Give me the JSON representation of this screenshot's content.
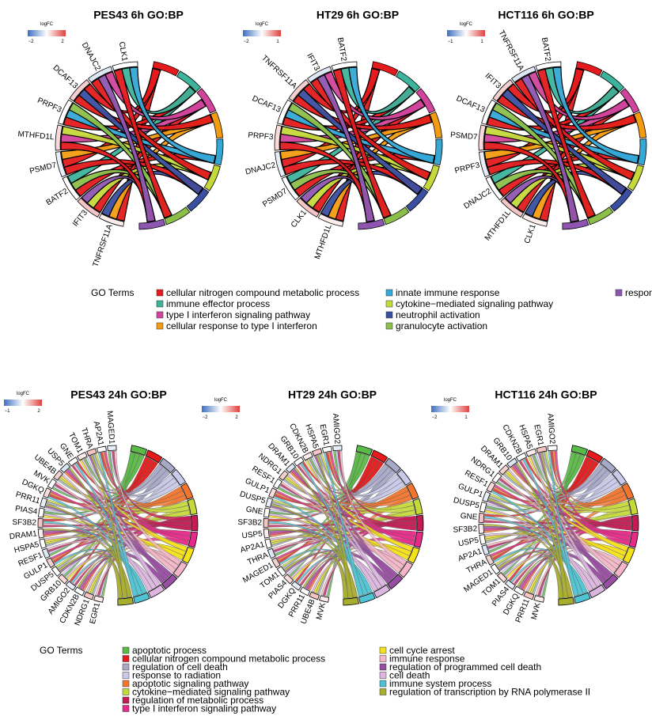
{
  "legend_top": {
    "heading": "GO Terms",
    "items": [
      {
        "label": "cellular nitrogen compound metabolic process",
        "color": "#e41a1c"
      },
      {
        "label": "immune effector process",
        "color": "#3cb39b"
      },
      {
        "label": "type I interferon signaling pathway",
        "color": "#d1449b"
      },
      {
        "label": "cellular response to type I interferon",
        "color": "#f39c12"
      },
      {
        "label": "innate immune response",
        "color": "#35a8d6"
      },
      {
        "label": "cytokine−mediated signaling pathway",
        "color": "#c5d93b"
      },
      {
        "label": "neutrophil activation",
        "color": "#3b4fa0"
      },
      {
        "label": "granulocyte activation",
        "color": "#8bbf4a"
      },
      {
        "label": "response to type I interferon",
        "color": "#8e56b0"
      }
    ]
  },
  "legend_bottom": {
    "heading": "GO Terms",
    "items": [
      {
        "label": "apoptotic process",
        "color": "#5bb947"
      },
      {
        "label": "cellular nitrogen compound metabolic process",
        "color": "#e41a1c"
      },
      {
        "label": "regulation of cell death",
        "color": "#a8a8c8"
      },
      {
        "label": "response to radiation",
        "color": "#c9c9e9"
      },
      {
        "label": "apoptotic signaling pathway",
        "color": "#f2762e"
      },
      {
        "label": "cytokine−mediated signaling pathway",
        "color": "#c5d93b"
      },
      {
        "label": "regulation of metabolic process",
        "color": "#c51b55"
      },
      {
        "label": "type I interferon signaling pathway",
        "color": "#e7298a"
      },
      {
        "label": "cell cycle arrest",
        "color": "#f5e11c"
      },
      {
        "label": "immune response",
        "color": "#f4b6c8"
      },
      {
        "label": "regulation of programmed cell death",
        "color": "#984ea3"
      },
      {
        "label": "cell death",
        "color": "#dcb6e0"
      },
      {
        "label": "immune system process",
        "color": "#4fc3d3"
      },
      {
        "label": "regulation of transcription by RNA polymerase II",
        "color": "#a7ad2c"
      }
    ]
  },
  "chart_data": [
    {
      "type": "chord",
      "title": "PES43 6h GO:BP",
      "colorbar": {
        "label": "logFC",
        "min": "−2",
        "max": "2"
      },
      "genes": [
        "TNFRSF11A",
        "IFIT3",
        "BATF2",
        "PSMD7",
        "MTHFD1L",
        "PRPF3",
        "DCAF13",
        "DNAJC2",
        "CLK1"
      ]
    },
    {
      "type": "chord",
      "title": "HT29 6h GO:BP",
      "colorbar": {
        "label": "logFC",
        "min": "−2",
        "max": "1"
      },
      "genes": [
        "MTHFD1L",
        "CLK1",
        "PSMD7",
        "DNAJC2",
        "PRPF3",
        "DCAF13",
        "TNFRSF11A",
        "IFIT3",
        "BATF2"
      ]
    },
    {
      "type": "chord",
      "title": "HCT116 6h GO:BP",
      "colorbar": {
        "label": "logFC",
        "min": "−1",
        "max": "1"
      },
      "genes": [
        "CLK1",
        "MTHFD1L",
        "DNAJC2",
        "PRPF3",
        "PSMD7",
        "DCAF13",
        "IFIT3",
        "TNFRSF11A",
        "BATF2"
      ]
    },
    {
      "type": "chord",
      "title": "PES43 24h GO:BP",
      "colorbar": {
        "label": "logFC",
        "min": "−1",
        "max": "2"
      },
      "genes": [
        "EGR1",
        "NDRG1",
        "CDKN2B",
        "AMIGO2",
        "GRB10",
        "DUSP5",
        "GULP1",
        "RESF1",
        "HSPA5",
        "DRAM1",
        "SF3B2",
        "PIAS4",
        "PRR11",
        "DGKQ",
        "MVK",
        "UBE4B",
        "USP5",
        "GNE",
        "TOM1",
        "THRA",
        "AP2A1",
        "MAGED1"
      ]
    },
    {
      "type": "chord",
      "title": "HT29 24h GO:BP",
      "colorbar": {
        "label": "logFC",
        "min": "−2",
        "max": "2"
      },
      "genes": [
        "MVK",
        "UBE4B",
        "PRR11",
        "DGKQ",
        "PIAS4",
        "TOM1",
        "MAGED1",
        "THRA",
        "AP2A1",
        "USP5",
        "SF3B2",
        "GNE",
        "DUSP5",
        "GULP1",
        "RESF1",
        "NDRG1",
        "DRAM1",
        "GRB10",
        "CDKN2B",
        "HSPA5",
        "EGR1",
        "AMIGO2"
      ]
    },
    {
      "type": "chord",
      "title": "HCT116 24h GO:BP",
      "colorbar": {
        "label": "logFC",
        "min": "−2",
        "max": "1"
      },
      "genes": [
        "MVK",
        "PRR11",
        "DGKQ",
        "PIAS4",
        "TOM1",
        "MAGED1",
        "THRA",
        "AP2A1",
        "USP5",
        "SF3B2",
        "GNE",
        "DUSP5",
        "GULP1",
        "RESF1",
        "NDRG1",
        "DRAM1",
        "GRB10",
        "CDKN2B",
        "HSPA5",
        "EGR1",
        "AMIGO2"
      ]
    }
  ]
}
